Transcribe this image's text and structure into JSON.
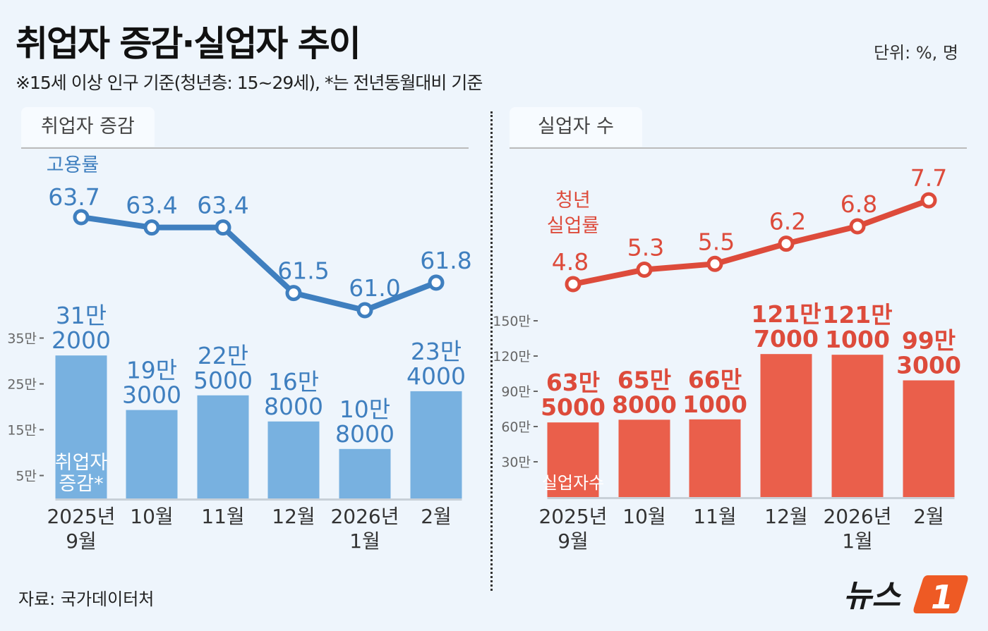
{
  "title": "취업자 증감·실업자 추이",
  "subtitle": "※15세 이상 인구 기준(청년층: 15~29세), *는 전년동월대비 기준",
  "unit": "단위: %, 명",
  "source": "자료: 국가데이터처",
  "logo": "뉴스1",
  "colors": {
    "blue_line": "#3f7fbf",
    "blue_bar": "#78b1e0",
    "red_line": "#dd4b3b",
    "red_bar": "#ea5f4b"
  },
  "chart_data": [
    {
      "panel": "취업자 증감",
      "type": "bar+line",
      "categories": [
        "2025년 9월",
        "10월",
        "11월",
        "12월",
        "2026년 1월",
        "2월"
      ],
      "category_lines": [
        [
          "2025년",
          "9월"
        ],
        [
          "10월"
        ],
        [
          "11월"
        ],
        [
          "12월"
        ],
        [
          "2026년",
          "1월"
        ],
        [
          "2월"
        ]
      ],
      "line": {
        "name": "고용률",
        "values": [
          63.7,
          63.4,
          63.4,
          61.5,
          61.0,
          61.8
        ],
        "labels": [
          "63.7",
          "63.4",
          "63.4",
          "61.5",
          "61.0",
          "61.8"
        ]
      },
      "bars": {
        "name": "취업자 증감*",
        "name_lines": [
          "취업자",
          "증감*"
        ],
        "values": [
          312000,
          193000,
          225000,
          168000,
          108000,
          234000
        ],
        "labels": [
          [
            "31만",
            "2000"
          ],
          [
            "19만",
            "3000"
          ],
          [
            "22만",
            "5000"
          ],
          [
            "16만",
            "8000"
          ],
          [
            "10만",
            "8000"
          ],
          [
            "23만",
            "4000"
          ]
        ]
      },
      "yticks": [
        {
          "v": 50000,
          "label": "5만"
        },
        {
          "v": 150000,
          "label": "15만"
        },
        {
          "v": 250000,
          "label": "25만"
        },
        {
          "v": 350000,
          "label": "35만"
        }
      ]
    },
    {
      "panel": "실업자 수",
      "type": "bar+line",
      "categories": [
        "2025년 9월",
        "10월",
        "11월",
        "12월",
        "2026년 1월",
        "2월"
      ],
      "category_lines": [
        [
          "2025년",
          "9월"
        ],
        [
          "10월"
        ],
        [
          "11월"
        ],
        [
          "12월"
        ],
        [
          "2026년",
          "1월"
        ],
        [
          "2월"
        ]
      ],
      "line": {
        "name": "청년 실업률",
        "name_lines": [
          "청년",
          "실업률"
        ],
        "values": [
          4.8,
          5.3,
          5.5,
          6.2,
          6.8,
          7.7
        ],
        "labels": [
          "4.8",
          "5.3",
          "5.5",
          "6.2",
          "6.8",
          "7.7"
        ]
      },
      "bars": {
        "name": "실업자수",
        "name_lines": [
          "실업자수"
        ],
        "values": [
          635000,
          658000,
          661000,
          1217000,
          1211000,
          993000
        ],
        "labels": [
          [
            "63만",
            "5000"
          ],
          [
            "65만",
            "8000"
          ],
          [
            "66만",
            "1000"
          ],
          [
            "121만",
            "7000"
          ],
          [
            "121만",
            "1000"
          ],
          [
            "99만",
            "3000"
          ]
        ]
      },
      "yticks": [
        {
          "v": 300000,
          "label": "30만"
        },
        {
          "v": 600000,
          "label": "60만"
        },
        {
          "v": 900000,
          "label": "90만"
        },
        {
          "v": 1200000,
          "label": "120만"
        },
        {
          "v": 1500000,
          "label": "150만"
        }
      ]
    }
  ]
}
